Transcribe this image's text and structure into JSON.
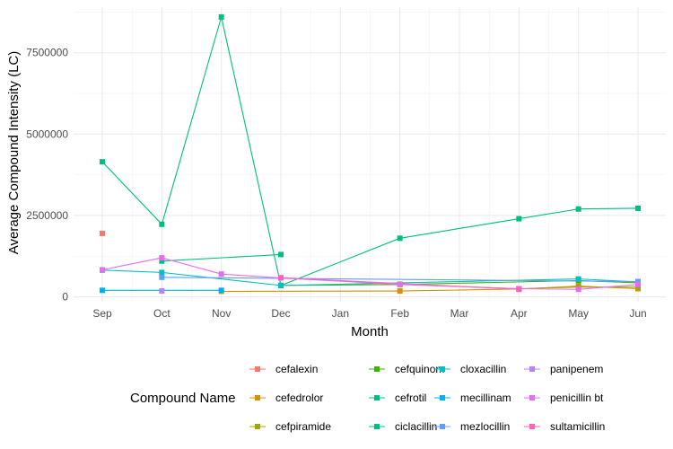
{
  "chart_data": {
    "type": "line",
    "title": "",
    "xlabel": "Month",
    "ylabel": "Average Compound Intensity (LC)",
    "x": [
      "Sep",
      "Oct",
      "Nov",
      "Dec",
      "Jan",
      "Feb",
      "Mar",
      "Apr",
      "May",
      "Jun"
    ],
    "yticks": [
      "0",
      "2500000",
      "5000000",
      "7500000"
    ],
    "ylim": [
      -150000,
      8900000
    ],
    "grid": true,
    "legend": {
      "title": "Compound Name",
      "position": "bottom"
    },
    "series": [
      {
        "name": "cefalexin",
        "color": "#F8766D",
        "points": [
          [
            "Sep",
            1950000
          ]
        ]
      },
      {
        "name": "cefedrolor",
        "color": "#D89000",
        "points": [
          [
            "Nov",
            170000
          ],
          [
            "Feb",
            180000
          ],
          [
            "Apr",
            240000
          ],
          [
            "May",
            330000
          ],
          [
            "Jun",
            250000
          ]
        ]
      },
      {
        "name": "cefpiramide",
        "color": "#A3A500",
        "points": [
          [
            "Feb",
            390000
          ],
          [
            "Apr",
            250000
          ],
          [
            "May",
            300000
          ],
          [
            "Jun",
            300000
          ]
        ]
      },
      {
        "name": "cefquinom",
        "color": "#39B600",
        "points": [
          [
            "Dec",
            350000
          ],
          [
            "Feb",
            380000
          ],
          [
            "May",
            500000
          ],
          [
            "Jun",
            430000
          ]
        ]
      },
      {
        "name": "cefrotil",
        "color": "#00BF7D",
        "points": [
          [
            "Oct",
            1100000
          ],
          [
            "Dec",
            1300000
          ]
        ]
      },
      {
        "name": "ciclacillin",
        "color": "#00BF7D",
        "points": [
          [
            "Sep",
            4150000
          ],
          [
            "Oct",
            2230000
          ],
          [
            "Nov",
            8600000
          ],
          [
            "Dec",
            350000
          ],
          [
            "Feb",
            1800000
          ],
          [
            "Apr",
            2400000
          ],
          [
            "May",
            2700000
          ],
          [
            "Jun",
            2720000
          ]
        ]
      },
      {
        "name": "cloxacillin",
        "color": "#00BFC4",
        "points": [
          [
            "Sep",
            820000
          ],
          [
            "Oct",
            750000
          ],
          [
            "Dec",
            350000
          ],
          [
            "May",
            550000
          ],
          [
            "Jun",
            460000
          ]
        ]
      },
      {
        "name": "mecillinam",
        "color": "#00B0F6",
        "points": [
          [
            "Sep",
            200000
          ],
          [
            "Nov",
            200000
          ]
        ]
      },
      {
        "name": "mezlocillin",
        "color": "#619CFF",
        "points": [
          [
            "Oct",
            600000
          ],
          [
            "Jun",
            470000
          ]
        ]
      },
      {
        "name": "panipenem",
        "color": "#B983FF",
        "points": [
          [
            "Oct",
            180000
          ]
        ]
      },
      {
        "name": "penicillin bt",
        "color": "#E76BF3",
        "points": [
          [
            "Sep",
            830000
          ],
          [
            "Oct",
            1200000
          ],
          [
            "Nov",
            700000
          ],
          [
            "Dec",
            580000
          ],
          [
            "Feb",
            380000
          ],
          [
            "Apr",
            250000
          ],
          [
            "May",
            230000
          ],
          [
            "Jun",
            380000
          ]
        ]
      },
      {
        "name": "sultamicillin",
        "color": "#FF62BC",
        "points": [
          [
            "Dec",
            590000
          ],
          [
            "Apr",
            230000
          ]
        ]
      }
    ]
  }
}
